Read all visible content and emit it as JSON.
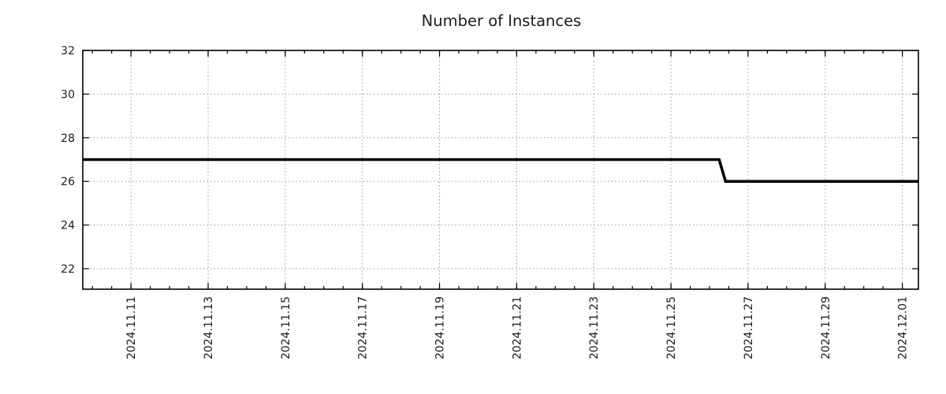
{
  "page": {
    "background": "#ffffff"
  },
  "chart_data": {
    "type": "line",
    "title": "Number of Instances",
    "xlabel": "",
    "ylabel": "",
    "legend": {
      "visible": false
    },
    "grid": {
      "visible": true,
      "style": "dotted",
      "color": "#999999"
    },
    "axis_color": "#000000",
    "text_color": "#1c1c1c",
    "x_axis": {
      "start": "2024-11-09T18:00:00",
      "end": "2024-12-01T10:00:00",
      "minor_tick_interval_hours": 12,
      "major_ticks": [
        {
          "label": "2024.11.11",
          "date": "2024-11-11T00:00:00"
        },
        {
          "label": "2024.11.13",
          "date": "2024-11-13T00:00:00"
        },
        {
          "label": "2024.11.15",
          "date": "2024-11-15T00:00:00"
        },
        {
          "label": "2024.11.17",
          "date": "2024-11-17T00:00:00"
        },
        {
          "label": "2024.11.19",
          "date": "2024-11-19T00:00:00"
        },
        {
          "label": "2024.11.21",
          "date": "2024-11-21T00:00:00"
        },
        {
          "label": "2024.11.23",
          "date": "2024-11-23T00:00:00"
        },
        {
          "label": "2024.11.25",
          "date": "2024-11-25T00:00:00"
        },
        {
          "label": "2024.11.27",
          "date": "2024-11-27T00:00:00"
        },
        {
          "label": "2024.11.29",
          "date": "2024-11-29T00:00:00"
        },
        {
          "label": "2024.12.01",
          "date": "2024-12-01T00:00:00"
        }
      ]
    },
    "y_axis": {
      "min": 21.06,
      "max": 32,
      "tick_labels": [
        "22",
        "24",
        "26",
        "28",
        "30",
        "32"
      ],
      "ticks": [
        22,
        24,
        26,
        28,
        30,
        32
      ]
    },
    "series": [
      {
        "name": "instances",
        "color": "#000000",
        "line_width": 3.6,
        "points": [
          {
            "date": "2024-11-09T18:00:00",
            "value": 27
          },
          {
            "date": "2024-11-26T06:00:00",
            "value": 27
          },
          {
            "date": "2024-11-26T10:00:00",
            "value": 26
          },
          {
            "date": "2024-12-01T10:00:00",
            "value": 26
          }
        ]
      }
    ]
  }
}
